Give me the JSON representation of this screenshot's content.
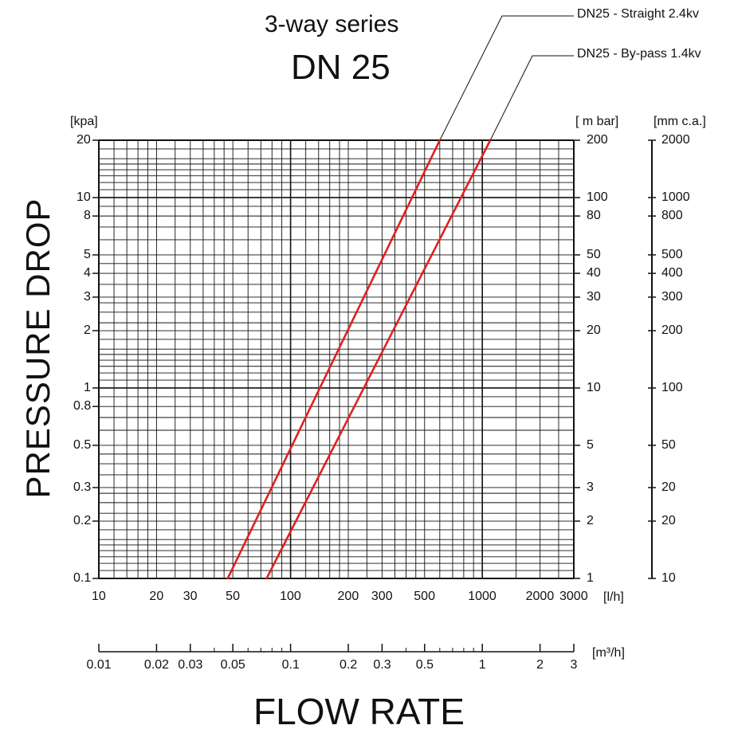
{
  "title": "3-way series",
  "subtitle": "DN 25",
  "units": {
    "left": "[kpa]",
    "right": "[ m bar]",
    "far_right": "[mm c.a.]",
    "flow_lh": "[l/h]",
    "flow_m3h": "[m³/h]"
  },
  "axis_titles": {
    "y": "PRESSURE DROP",
    "x": "FLOW RATE"
  },
  "colors": {
    "series": "#e02020",
    "grid": "#111111"
  },
  "chart_data": {
    "type": "line",
    "title": "3-way series DN 25",
    "xlabel": "FLOW RATE",
    "ylabel": "PRESSURE DROP",
    "x_scale": "log",
    "y_scale": "log",
    "xlim": [
      10,
      3000
    ],
    "ylim": [
      0.1,
      20
    ],
    "grid": true,
    "series": [
      {
        "name": "DN25 - Straight 2.4kv",
        "x": [
          47,
          600
        ],
        "y": [
          0.1,
          20
        ]
      },
      {
        "name": "DN25 - By-pass 1.4kv",
        "x": [
          75,
          1100
        ],
        "y": [
          0.1,
          20
        ]
      }
    ],
    "left_ticks": [
      {
        "v": 20,
        "label": "20"
      },
      {
        "v": 10,
        "label": "10"
      },
      {
        "v": 8,
        "label": "8"
      },
      {
        "v": 5,
        "label": "5"
      },
      {
        "v": 4,
        "label": "4"
      },
      {
        "v": 3,
        "label": "3"
      },
      {
        "v": 2,
        "label": "2"
      },
      {
        "v": 1,
        "label": "1"
      },
      {
        "v": 0.8,
        "label": "0.8"
      },
      {
        "v": 0.5,
        "label": "0.5"
      },
      {
        "v": 0.3,
        "label": "0.3"
      },
      {
        "v": 0.2,
        "label": "0.2"
      },
      {
        "v": 0.1,
        "label": "0.1"
      }
    ],
    "right_ticks": [
      {
        "v": 20,
        "label": "200"
      },
      {
        "v": 10,
        "label": "100"
      },
      {
        "v": 8,
        "label": "80"
      },
      {
        "v": 5,
        "label": "50"
      },
      {
        "v": 4,
        "label": "40"
      },
      {
        "v": 3,
        "label": "30"
      },
      {
        "v": 2,
        "label": "20"
      },
      {
        "v": 1,
        "label": "10"
      },
      {
        "v": 0.5,
        "label": "5"
      },
      {
        "v": 0.3,
        "label": "3"
      },
      {
        "v": 0.2,
        "label": "2"
      },
      {
        "v": 0.1,
        "label": "1"
      }
    ],
    "far_right_ticks": [
      {
        "v": 20,
        "label": "2000"
      },
      {
        "v": 10,
        "label": "1000"
      },
      {
        "v": 8,
        "label": "800"
      },
      {
        "v": 5,
        "label": "500"
      },
      {
        "v": 4,
        "label": "400"
      },
      {
        "v": 3,
        "label": "300"
      },
      {
        "v": 2,
        "label": "200"
      },
      {
        "v": 1,
        "label": "100"
      },
      {
        "v": 0.5,
        "label": "50"
      },
      {
        "v": 0.3,
        "label": "20"
      },
      {
        "v": 0.2,
        "label": "20"
      },
      {
        "v": 0.1,
        "label": "10"
      }
    ],
    "bottom_ticks": [
      {
        "v": 10,
        "label": "10"
      },
      {
        "v": 20,
        "label": "20"
      },
      {
        "v": 30,
        "label": "30"
      },
      {
        "v": 50,
        "label": "50"
      },
      {
        "v": 100,
        "label": "100"
      },
      {
        "v": 200,
        "label": "200"
      },
      {
        "v": 300,
        "label": "300"
      },
      {
        "v": 500,
        "label": "500"
      },
      {
        "v": 1000,
        "label": "1000"
      },
      {
        "v": 2000,
        "label": "2000"
      },
      {
        "v": 3000,
        "label": "3000"
      }
    ],
    "m3h_ticks": [
      {
        "v": 0.01,
        "label": "0.01"
      },
      {
        "v": 0.02,
        "label": "0.02"
      },
      {
        "v": 0.03,
        "label": "0.03"
      },
      {
        "v": 0.05,
        "label": "0.05"
      },
      {
        "v": 0.1,
        "label": "0.1"
      },
      {
        "v": 0.2,
        "label": "0.2"
      },
      {
        "v": 0.3,
        "label": "0.3"
      },
      {
        "v": 0.5,
        "label": "0.5"
      },
      {
        "v": 1,
        "label": "1"
      },
      {
        "v": 2,
        "label": "2"
      },
      {
        "v": 3,
        "label": "3"
      }
    ]
  }
}
